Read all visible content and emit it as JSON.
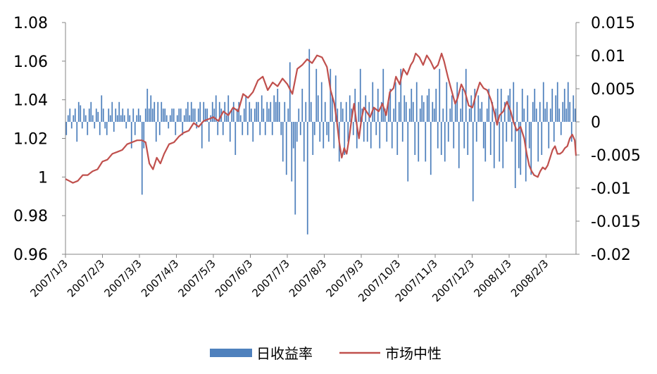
{
  "chart_data": {
    "type": "bar",
    "title": "",
    "x_tick_labels": [
      "2007/1/3",
      "2007/2/3",
      "2007/3/3",
      "2007/4/3",
      "2007/5/3",
      "2007/6/3",
      "2007/7/3",
      "2007/8/3",
      "2007/9/3",
      "2007/10/3",
      "2007/11/3",
      "2007/12/3",
      "2008/1/3",
      "2008/2/3"
    ],
    "y_left": {
      "ticks": [
        "0.96",
        "0.98",
        "1",
        "1.02",
        "1.04",
        "1.06",
        "1.08"
      ],
      "ylim": [
        0.96,
        1.08
      ]
    },
    "y_right": {
      "ticks": [
        "-0.02",
        "-0.015",
        "-0.01",
        "-0.005",
        "0",
        "0.005",
        "0.01",
        "0.015"
      ],
      "ylim": [
        -0.02,
        0.015
      ]
    },
    "legend": {
      "position": "bottom",
      "entries": [
        "日收益率",
        "市场中性"
      ]
    },
    "series": [
      {
        "name": "日收益率",
        "type": "bar",
        "axis": "right",
        "color": "#4F81BD",
        "values": [
          -0.002,
          0.001,
          0.002,
          -0.001,
          0.001,
          0.002,
          -0.003,
          0.003,
          0.0025,
          -0.001,
          0.002,
          0.001,
          -0.002,
          0.002,
          0.003,
          0.001,
          -0.001,
          0.002,
          0.0015,
          -0.002,
          0.004,
          0.002,
          -0.001,
          -0.002,
          0.002,
          0.001,
          0.003,
          -0.0015,
          0.002,
          0.001,
          0.003,
          0.001,
          0.002,
          0.001,
          -0.001,
          0.002,
          0.001,
          -0.004,
          0.002,
          -0.002,
          0.001,
          0.002,
          0.001,
          -0.011,
          -0.004,
          0.002,
          0.005,
          0.002,
          0.004,
          0.002,
          0.003,
          -0.003,
          0.003,
          -0.002,
          0.003,
          0.002,
          0.002,
          0.001,
          -0.001,
          0.001,
          0.002,
          0.002,
          -0.002,
          0.001,
          0.002,
          0.002,
          -0.002,
          0.001,
          0.002,
          0.003,
          0.001,
          0.003,
          0.002,
          0.002,
          -0.001,
          0.002,
          0.003,
          -0.004,
          0.003,
          0.002,
          0.002,
          -0.003,
          0.001,
          0.003,
          0.002,
          0.004,
          -0.002,
          0.003,
          0.002,
          -0.002,
          0.003,
          0.001,
          0.004,
          -0.003,
          0.002,
          0.003,
          -0.005,
          0.002,
          0.003,
          0.001,
          -0.002,
          0.002,
          0.004,
          -0.002,
          0.003,
          0.002,
          -0.003,
          0.002,
          0.003,
          0.003,
          -0.002,
          0.004,
          0.002,
          -0.002,
          0.003,
          0.002,
          0.003,
          -0.002,
          0.004,
          0.003,
          0.005,
          0.003,
          -0.002,
          -0.006,
          0.003,
          -0.008,
          0.002,
          0.009,
          -0.009,
          -0.004,
          -0.014,
          -0.003,
          0.002,
          -0.002,
          0.005,
          -0.006,
          0.003,
          -0.017,
          0.011,
          0.003,
          -0.005,
          -0.002,
          0.008,
          0.004,
          -0.003,
          0.006,
          -0.004,
          0.003,
          -0.002,
          -0.003,
          0.008,
          0.004,
          -0.004,
          0.007,
          0.002,
          -0.006,
          0.003,
          0.002,
          -0.005,
          0.003,
          -0.003,
          0.004,
          0.002,
          -0.002,
          0.005,
          -0.004,
          0.003,
          0.008,
          0.002,
          -0.003,
          0.004,
          -0.003,
          0.003,
          -0.004,
          0.006,
          0.002,
          -0.002,
          0.005,
          -0.004,
          0.003,
          0.008,
          0.002,
          -0.003,
          0.003,
          0.005,
          -0.004,
          0.002,
          0.006,
          -0.005,
          0.003,
          0.008,
          -0.003,
          0.004,
          0.003,
          -0.009,
          0.002,
          0.005,
          0.003,
          -0.005,
          0.006,
          -0.006,
          0.002,
          0.004,
          0.003,
          -0.006,
          0.004,
          0.005,
          -0.008,
          0.003,
          0.002,
          0.005,
          -0.004,
          0.008,
          -0.005,
          0.002,
          -0.006,
          0.006,
          -0.003,
          0.002,
          0.004,
          -0.004,
          0.003,
          0.006,
          -0.007,
          0.002,
          0.005,
          -0.004,
          0.008,
          -0.005,
          0.002,
          0.004,
          -0.012,
          0.005,
          -0.003,
          0.004,
          0.002,
          0.003,
          -0.004,
          -0.006,
          0.002,
          0.005,
          -0.005,
          0.003,
          -0.007,
          0.002,
          0.005,
          -0.006,
          0.005,
          -0.007,
          0.003,
          -0.003,
          0.004,
          0.005,
          -0.003,
          0.006,
          -0.01,
          0.003,
          -0.007,
          -0.008,
          0.005,
          0.002,
          -0.009,
          0.004,
          -0.004,
          -0.008,
          0.003,
          0.005,
          0.002,
          -0.006,
          0.003,
          -0.005,
          0.006,
          0.002,
          0.003,
          -0.004,
          0.002,
          0.005,
          -0.003,
          0.004,
          0.006,
          0.002,
          -0.002,
          0.003,
          0.005,
          0.002,
          0.006,
          0.003,
          -0.003,
          0.004,
          0.002
        ]
      },
      {
        "name": "市场中性",
        "type": "line",
        "axis": "left",
        "color": "#C0504D",
        "points": [
          [
            0,
            0.999
          ],
          [
            3,
            0.998
          ],
          [
            6,
            0.997
          ],
          [
            10,
            0.998
          ],
          [
            14,
            1.001
          ],
          [
            18,
            1.001
          ],
          [
            22,
            1.003
          ],
          [
            26,
            1.004
          ],
          [
            30,
            1.008
          ],
          [
            34,
            1.009
          ],
          [
            38,
            1.012
          ],
          [
            42,
            1.013
          ],
          [
            46,
            1.014
          ],
          [
            50,
            1.017
          ],
          [
            54,
            1.018
          ],
          [
            58,
            1.019
          ],
          [
            62,
            1.019
          ],
          [
            65,
            1.018
          ],
          [
            68,
            1.007
          ],
          [
            71,
            1.004
          ],
          [
            74,
            1.01
          ],
          [
            77,
            1.007
          ],
          [
            80,
            1.012
          ],
          [
            84,
            1.017
          ],
          [
            88,
            1.018
          ],
          [
            92,
            1.021
          ],
          [
            96,
            1.023
          ],
          [
            100,
            1.024
          ],
          [
            104,
            1.028
          ],
          [
            108,
            1.026
          ],
          [
            112,
            1.029
          ],
          [
            116,
            1.03
          ],
          [
            120,
            1.031
          ],
          [
            124,
            1.029
          ],
          [
            128,
            1.034
          ],
          [
            132,
            1.032
          ],
          [
            136,
            1.036
          ],
          [
            140,
            1.034
          ],
          [
            144,
            1.043
          ],
          [
            148,
            1.041
          ],
          [
            152,
            1.044
          ],
          [
            156,
            1.05
          ],
          [
            160,
            1.052
          ],
          [
            164,
            1.045
          ],
          [
            168,
            1.049
          ],
          [
            172,
            1.047
          ],
          [
            176,
            1.051
          ],
          [
            180,
            1.048
          ],
          [
            184,
            1.043
          ],
          [
            188,
            1.056
          ],
          [
            192,
            1.058
          ],
          [
            196,
            1.061
          ],
          [
            200,
            1.059
          ],
          [
            204,
            1.063
          ],
          [
            208,
            1.062
          ],
          [
            212,
            1.057
          ],
          [
            215,
            1.045
          ],
          [
            218,
            1.038
          ],
          [
            220,
            1.029
          ],
          [
            222,
            1.018
          ],
          [
            224,
            1.01
          ],
          [
            226,
            1.015
          ],
          [
            228,
            1.012
          ],
          [
            230,
            1.02
          ],
          [
            232,
            1.03
          ],
          [
            234,
            1.038
          ],
          [
            236,
            1.028
          ],
          [
            238,
            1.02
          ],
          [
            240,
            1.03
          ],
          [
            242,
            1.036
          ],
          [
            244,
            1.034
          ],
          [
            247,
            1.031
          ],
          [
            250,
            1.036
          ],
          [
            254,
            1.034
          ],
          [
            257,
            1.038
          ],
          [
            260,
            1.032
          ],
          [
            263,
            1.044
          ],
          [
            266,
            1.046
          ],
          [
            268,
            1.052
          ],
          [
            271,
            1.048
          ],
          [
            274,
            1.056
          ],
          [
            277,
            1.053
          ],
          [
            280,
            1.058
          ],
          [
            282,
            1.06
          ],
          [
            284,
            1.064
          ],
          [
            287,
            1.062
          ],
          [
            290,
            1.058
          ],
          [
            293,
            1.063
          ],
          [
            296,
            1.06
          ],
          [
            299,
            1.056
          ],
          [
            302,
            1.058
          ],
          [
            305,
            1.064
          ],
          [
            307,
            1.06
          ],
          [
            310,
            1.052
          ],
          [
            313,
            1.045
          ],
          [
            316,
            1.038
          ],
          [
            318,
            1.041
          ],
          [
            321,
            1.048
          ],
          [
            324,
            1.044
          ],
          [
            327,
            1.037
          ],
          [
            330,
            1.036
          ],
          [
            333,
            1.043
          ],
          [
            336,
            1.049
          ],
          [
            339,
            1.046
          ],
          [
            342,
            1.045
          ],
          [
            345,
            1.04
          ],
          [
            348,
            1.033
          ],
          [
            350,
            1.027
          ],
          [
            352,
            1.032
          ],
          [
            355,
            1.034
          ],
          [
            358,
            1.039
          ],
          [
            361,
            1.034
          ],
          [
            363,
            1.029
          ],
          [
            366,
            1.024
          ],
          [
            369,
            1.026
          ],
          [
            372,
            1.02
          ],
          [
            374,
            1.012
          ],
          [
            376,
            1.006
          ],
          [
            378,
            1.003
          ],
          [
            380,
            1.001
          ],
          [
            383,
            1.0
          ],
          [
            385,
            1.003
          ],
          [
            387,
            1.005
          ],
          [
            389,
            1.004
          ],
          [
            391,
            1.006
          ],
          [
            393,
            1.01
          ],
          [
            395,
            1.014
          ],
          [
            397,
            1.016
          ],
          [
            399,
            1.012
          ],
          [
            401,
            1.012
          ],
          [
            403,
            1.013
          ],
          [
            405,
            1.015
          ],
          [
            407,
            1.016
          ],
          [
            409,
            1.02
          ],
          [
            411,
            1.022
          ],
          [
            413,
            1.019
          ],
          [
            414,
            1.011
          ]
        ]
      }
    ]
  }
}
